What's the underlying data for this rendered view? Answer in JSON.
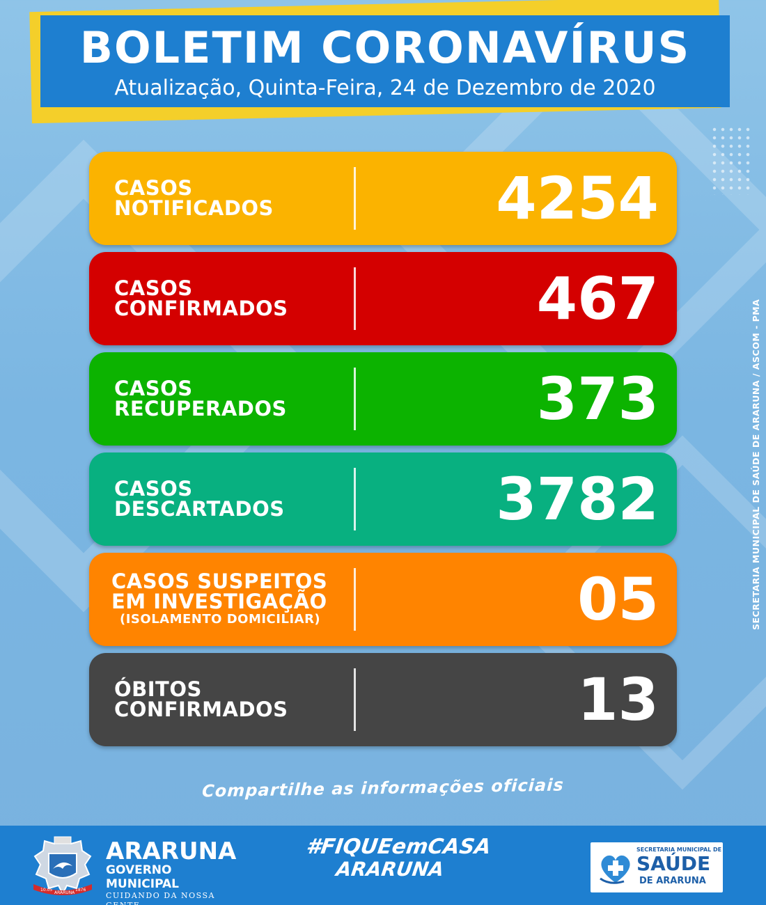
{
  "header": {
    "title": "BOLETIM CORONAVÍRUS",
    "subtitle": "Atualização, Quinta-Feira, 24 de Dezembro de 2020"
  },
  "stats": [
    {
      "line1": "CASOS",
      "line2": "NOTIFICADOS",
      "value": "4254",
      "color": "#fbb300"
    },
    {
      "line1": "CASOS",
      "line2": "CONFIRMADOS",
      "value": "467",
      "color": "#d40000"
    },
    {
      "line1": "CASOS",
      "line2": "RECUPERADOS",
      "value": "373",
      "color": "#0cb300"
    },
    {
      "line1": "CASOS",
      "line2": "DESCARTADOS",
      "value": "3782",
      "color": "#08b080"
    },
    {
      "line1": "CASOS SUSPEITOS",
      "line2": "EM INVESTIGAÇÃO",
      "line3": "(ISOLAMENTO DOMICILIAR)",
      "value": "05",
      "color": "#ff8400"
    },
    {
      "line1": "ÓBITOS",
      "line2": "CONFIRMADOS",
      "value": "13",
      "color": "#454545"
    }
  ],
  "share_text": "Compartilhe as informações oficiais",
  "side_credit": "SECRETARIA MUNICIPAL DE SAÚDE DE ARARUNA / ASCOM - PMA",
  "footer": {
    "araruna": {
      "name": "ARARUNA",
      "government": "GOVERNO MUNICIPAL",
      "slogan": "CUIDANDO DA NOSSA GENTE",
      "crest_text_left": "10.05",
      "crest_text_center": "ARARUNA",
      "crest_text_right": "1876"
    },
    "hashtag": {
      "line1": "#FIQUEemCASA",
      "line2": "ARARUNA"
    },
    "saude": {
      "secretaria": "SECRETARIA MUNICIPAL DE",
      "main": "SAÚDE",
      "sub": "DE ARARUNA"
    }
  },
  "colors": {
    "header_blue": "#1e7fd0",
    "header_accent": "#f4cf2a",
    "background": "#7bb6e2"
  }
}
